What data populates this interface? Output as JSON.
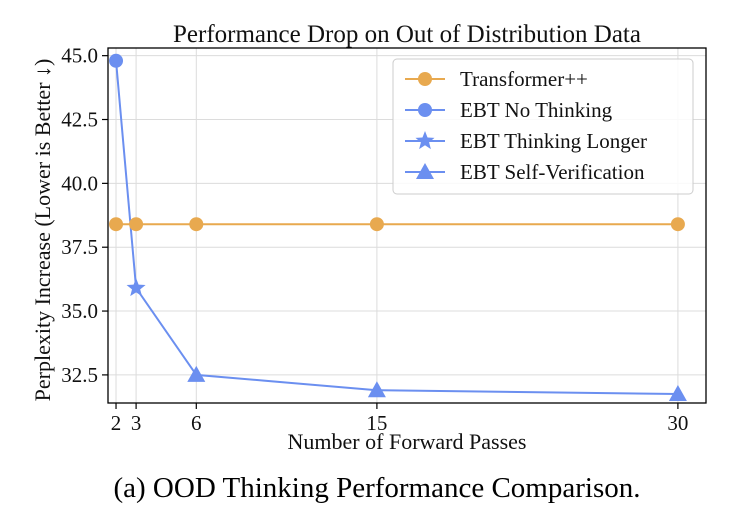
{
  "chart_data": {
    "type": "line",
    "title": "Performance Drop on Out of Distribution Data",
    "xlabel": "Number of Forward Passes",
    "ylabel": "Perplexity Increase (Lower is Better ↓)",
    "x_ticks": [
      2,
      3,
      6,
      15,
      30
    ],
    "y_ticks": [
      "32.5",
      "35.0",
      "37.5",
      "40.0",
      "42.5",
      "45.0"
    ],
    "xlim": [
      1.6,
      31.4
    ],
    "ylim": [
      31.4,
      45.3
    ],
    "grid": true,
    "legend_position": "top-right",
    "series": [
      {
        "name": "Transformer++",
        "color": "#E8A94F",
        "marker": "circle",
        "x": [
          2,
          3,
          6,
          15,
          30
        ],
        "y": [
          38.4,
          38.4,
          38.4,
          38.4,
          38.4
        ]
      },
      {
        "name": "EBT No Thinking",
        "color": "#6B8FF0",
        "marker": "circle",
        "x": [
          2
        ],
        "y": [
          44.8
        ]
      },
      {
        "name": "EBT Thinking Longer",
        "color": "#6B8FF0",
        "marker": "star",
        "x": [
          3
        ],
        "y": [
          35.9
        ]
      },
      {
        "name": "EBT Self-Verification",
        "color": "#6B8FF0",
        "marker": "triangle",
        "x": [
          6,
          15,
          30
        ],
        "y": [
          32.5,
          31.9,
          31.75
        ]
      }
    ],
    "ebt_line": {
      "color": "#6B8FF0",
      "x": [
        2,
        3,
        6,
        15,
        30
      ],
      "y": [
        44.8,
        35.9,
        32.5,
        31.9,
        31.75
      ]
    }
  },
  "caption": "(a) OOD Thinking Performance Comparison."
}
